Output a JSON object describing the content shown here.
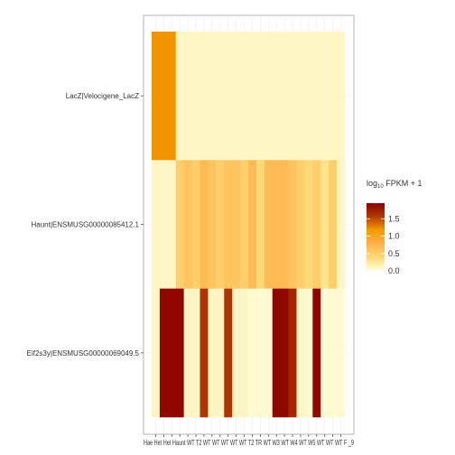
{
  "chart_data": {
    "type": "heatmap",
    "rows": [
      "LacZ|Velocigene_LacZ",
      "Haunt|ENSMUSG00000085412.1",
      "Eif2s3y|ENSMUSG00000069049.5"
    ],
    "columns": [
      "Hae",
      "Het",
      "Het",
      "Haunt",
      "WT",
      "T2",
      "WT",
      "WT",
      "WT",
      "WT",
      "WT",
      "T2",
      "TR",
      "WT",
      "W3",
      "WT",
      "W4",
      "WT",
      "W5",
      "WT",
      "WT",
      "WT",
      "F",
      "_9"
    ],
    "x_tick_text": "Hae Het Het Haunt WT T2 WT WT WT WT WT T2 TR WT W3 WT W4 WT W5 WT WT WT F _9",
    "values": [
      [
        1.2,
        1.2,
        1.2,
        0.1,
        0.1,
        0.1,
        0.1,
        0.1,
        0.1,
        0.1,
        0.1,
        0.1,
        0.1,
        0.1,
        0.1,
        0.1,
        0.1,
        0.1,
        0.1,
        0.1,
        0.1,
        0.1,
        0.1,
        0.1
      ],
      [
        0.1,
        0.1,
        0.1,
        0.5,
        0.6,
        0.5,
        0.7,
        0.6,
        0.5,
        0.6,
        0.6,
        0.5,
        0.7,
        0.4,
        0.7,
        0.7,
        0.7,
        0.6,
        0.5,
        0.4,
        0.5,
        0.3,
        0.5,
        0.1
      ],
      [
        0.1,
        1.9,
        1.9,
        1.9,
        0.1,
        0.1,
        1.6,
        0.1,
        0.1,
        1.6,
        0.1,
        0.1,
        0.05,
        0.05,
        0.05,
        1.9,
        1.9,
        1.7,
        0.1,
        0.05,
        1.9,
        0.05,
        0.05,
        0.05
      ]
    ],
    "legend": {
      "title_main": "log",
      "title_sub": "10",
      "title_rest": " FPKM + 1",
      "ticks": [
        0.0,
        0.5,
        1.0,
        1.5
      ],
      "tick_labels": [
        "0.0",
        "0.5",
        "1.0",
        "1.5"
      ],
      "range": [
        0,
        1.95
      ],
      "colors": [
        "#ffffe0",
        "#fed976",
        "#feb24c",
        "#f59b00",
        "#b33a00",
        "#8b0000"
      ]
    },
    "grid": true
  }
}
